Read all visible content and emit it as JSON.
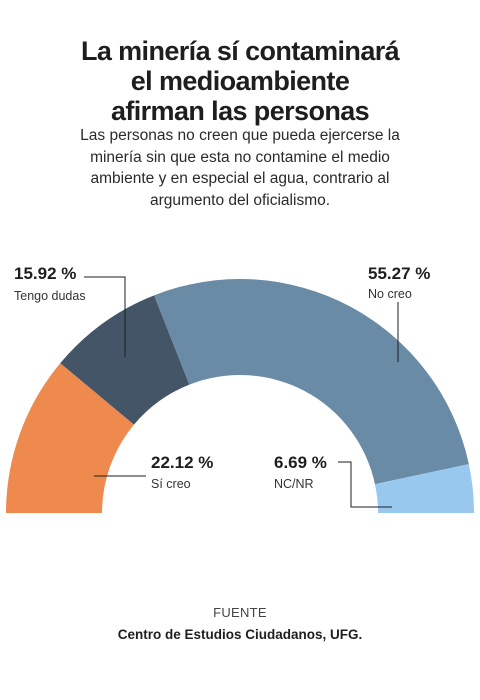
{
  "title_lines": [
    "La minería sí contaminará",
    "el medioambiente",
    "afirman las personas"
  ],
  "subtitle_lines": [
    "Las personas no creen que pueda ejercerse la",
    "minería sin que esta no contamine el medio",
    "ambiente y en especial el agua, contrario al",
    "argumento del oficialismo."
  ],
  "chart_data": {
    "type": "pie",
    "variant": "semicircle-donut",
    "slices": [
      {
        "label": "Sí creo",
        "value": 22.12,
        "display": "22.12 %",
        "color": "#ef8a4f"
      },
      {
        "label": "Tengo dudas",
        "value": 15.92,
        "display": "15.92 %",
        "color": "#435566"
      },
      {
        "label": "No creo",
        "value": 55.27,
        "display": "55.27 %",
        "color": "#6a8ba5"
      },
      {
        "label": "NC/NR",
        "value": 6.69,
        "display": "6.69 %",
        "color": "#99c8ee"
      }
    ]
  },
  "source_label": "FUENTE",
  "source": "Centro de Estudios Ciudadanos, UFG."
}
